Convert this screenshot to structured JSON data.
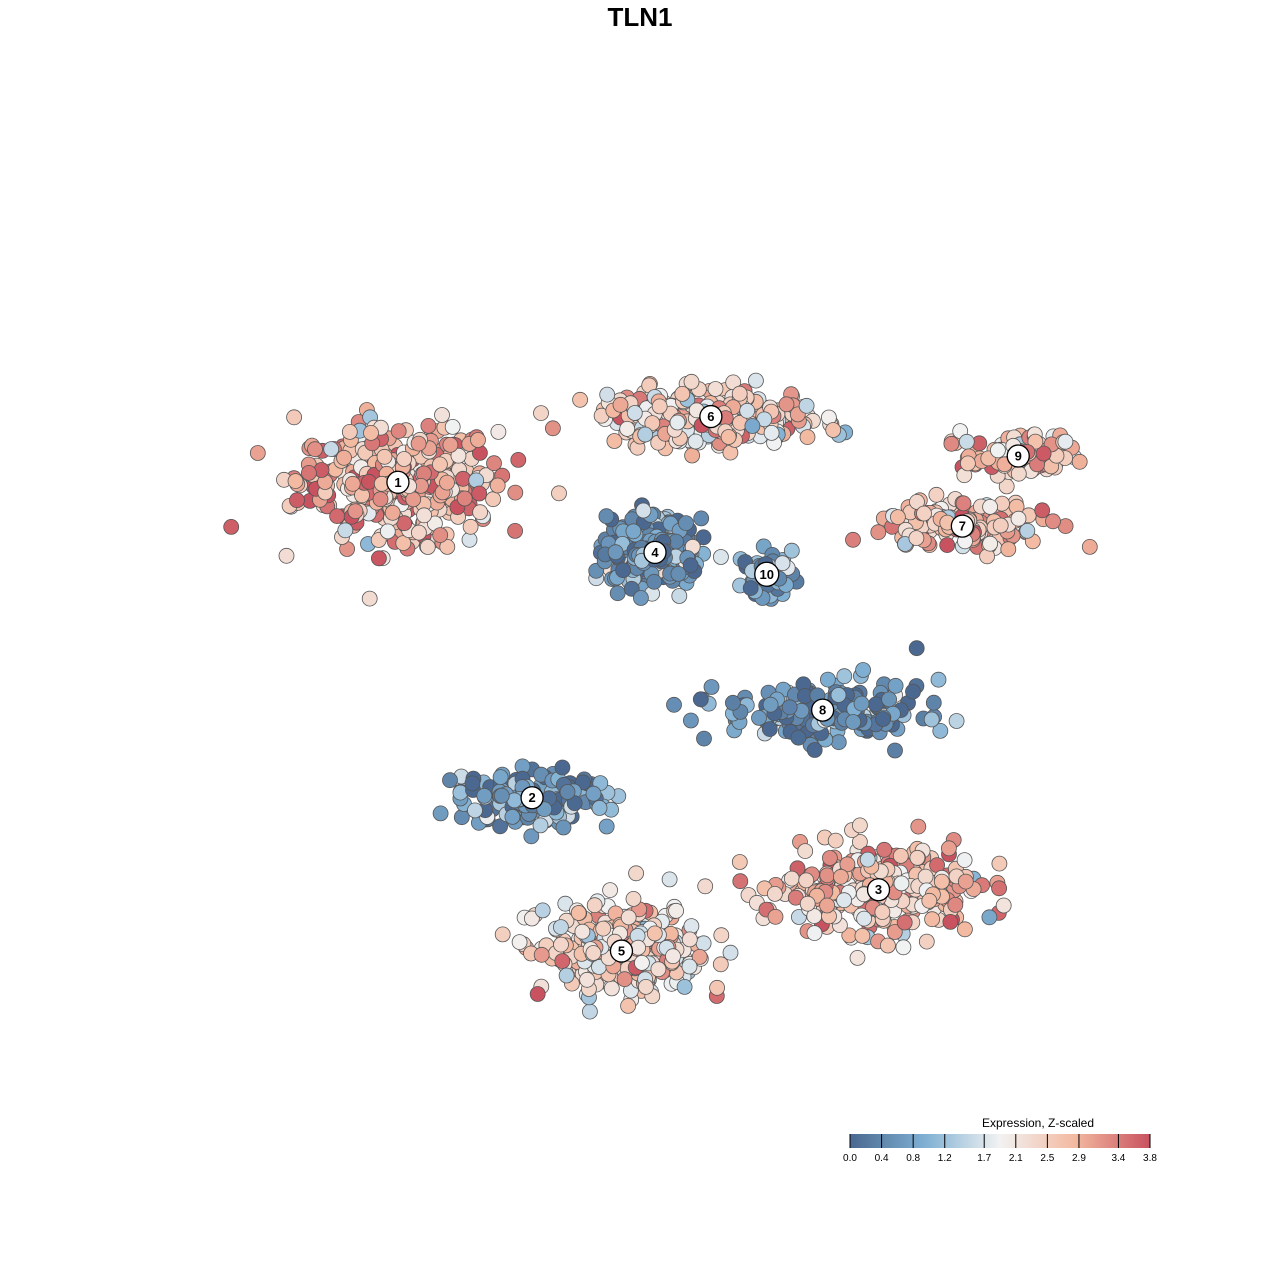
{
  "chart_data": {
    "type": "scatter",
    "title": "TLN1",
    "xlabel": "",
    "ylabel": "",
    "grid": false,
    "axes_visible": false,
    "point_count_note": "",
    "colors": {
      "low": "#4a6890",
      "mid_low": "#7fb0d3",
      "mid": "#f2f2f2",
      "mid_high": "#f3b9a0",
      "high": "#c8525f",
      "outline": "#555555"
    },
    "legend": {
      "title": "Expression, Z-scaled",
      "placement": "bottom-right",
      "range": [
        0.0,
        3.8
      ],
      "ticks": [
        0.0,
        0.4,
        0.8,
        1.2,
        1.7,
        2.1,
        2.5,
        2.9,
        3.4,
        3.8
      ],
      "tick_labels": [
        "0.0",
        "0.4",
        "0.8",
        "1.2",
        "1.7",
        "2.1",
        "2.5",
        "2.9",
        "3.4",
        "3.8"
      ]
    },
    "clusters": [
      {
        "label": "1",
        "x": -4.6,
        "y": 3.6,
        "mean_expr": 2.8
      },
      {
        "label": "2",
        "x": -2.2,
        "y": -3.6,
        "mean_expr": 0.5
      },
      {
        "label": "3",
        "x": 4.0,
        "y": -5.7,
        "mean_expr": 2.6
      },
      {
        "label": "4",
        "x": 0.0,
        "y": 2.0,
        "mean_expr": 0.6
      },
      {
        "label": "5",
        "x": -0.6,
        "y": -7.1,
        "mean_expr": 2.3
      },
      {
        "label": "6",
        "x": 1.0,
        "y": 5.1,
        "mean_expr": 2.4
      },
      {
        "label": "7",
        "x": 5.5,
        "y": 2.6,
        "mean_expr": 2.7
      },
      {
        "label": "8",
        "x": 3.0,
        "y": -1.6,
        "mean_expr": 0.4
      },
      {
        "label": "9",
        "x": 6.5,
        "y": 4.2,
        "mean_expr": 2.6
      },
      {
        "label": "10",
        "x": 2.0,
        "y": 1.5,
        "mean_expr": 0.5
      }
    ],
    "xlim": [
      -8.5,
      8.5
    ],
    "ylim": [
      -10.5,
      10.5
    ]
  }
}
